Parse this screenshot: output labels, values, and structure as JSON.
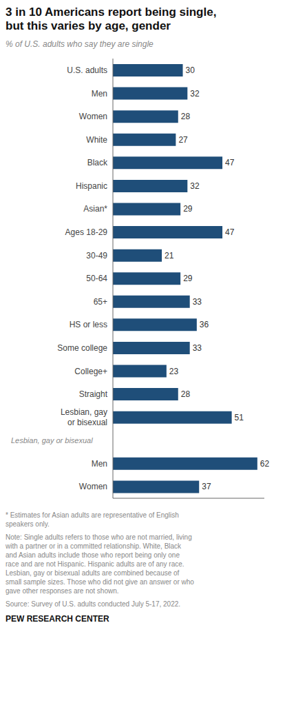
{
  "chart_data": {
    "type": "bar",
    "orientation": "horizontal",
    "title": "3 in 10 Americans report being single,\nbut this varies by age, gender",
    "subtitle": "% of U.S. adults who say they are single",
    "categories": [
      "U.S. adults",
      "Men",
      "Women",
      "White",
      "Black",
      "Hispanic",
      "Asian*",
      "Ages 18-29",
      "30-49",
      "50-64",
      "65+",
      "HS or less",
      "Some college",
      "College+",
      "Straight",
      "Lesbian, gay\nor bisexual",
      "Lesbian, gay or bisexual",
      "Men",
      "Women"
    ],
    "values": [
      30,
      32,
      28,
      27,
      47,
      32,
      29,
      47,
      21,
      29,
      33,
      36,
      33,
      23,
      28,
      51,
      null,
      62,
      37
    ],
    "color": "#1f4e79",
    "xlim": [
      0,
      65
    ],
    "data_labels": true,
    "tick_labels": "y",
    "grid": false,
    "annotations": [
      "* Estimates for Asian adults are representative of English\nspeakers only.",
      "Note: Single adults refers to those who are not married, living\nwith a partner or in a committed relationship. White, Black\nand Asian adults include those who report being only one\nrace and are not Hispanic. Hispanic adults are of any race.\nLesbian, gay or bisexual adults are combined because of\nsmall sample sizes. Those who did not give an answer or who\ngave other responses are not shown.",
      "Source: Survey of U.S. adults conducted July 5-17, 2022.",
      "PEW RESEARCH CENTER"
    ]
  }
}
